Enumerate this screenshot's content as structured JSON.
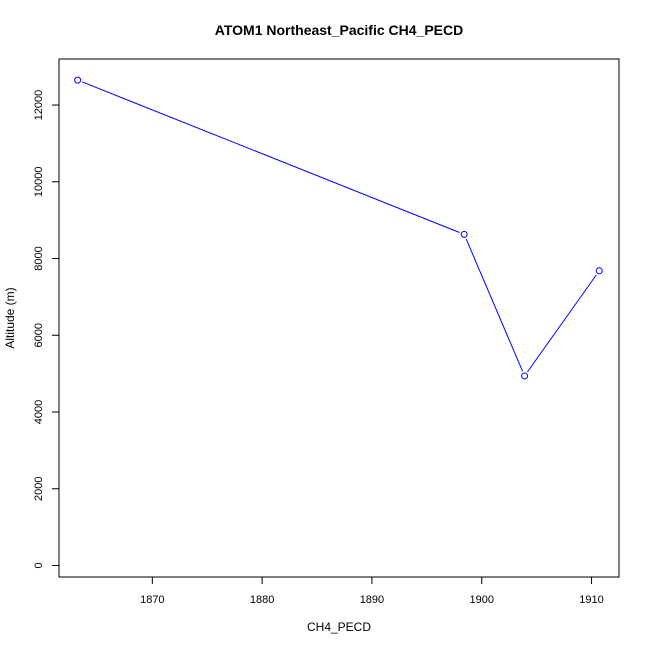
{
  "chart_data": {
    "type": "line",
    "title": "ATOM1 Northeast_Pacific CH4_PECD",
    "xlabel": "CH4_PECD",
    "ylabel": "Altitude (m)",
    "xlim": [
      1861.5,
      1912.5
    ],
    "ylim": [
      -300,
      13200
    ],
    "x_ticks": [
      1870,
      1880,
      1890,
      1900,
      1910
    ],
    "y_ticks": [
      0,
      2000,
      4000,
      6000,
      8000,
      10000,
      12000
    ],
    "grid": false,
    "legend": "none",
    "series": [
      {
        "color": "#0000ff",
        "marker": "open-circle",
        "points": [
          {
            "x": 1863.2,
            "y": 12650
          },
          {
            "x": 1898.4,
            "y": 8630
          },
          {
            "x": 1903.9,
            "y": 4940
          },
          {
            "x": 1910.7,
            "y": 7680
          }
        ]
      }
    ]
  }
}
